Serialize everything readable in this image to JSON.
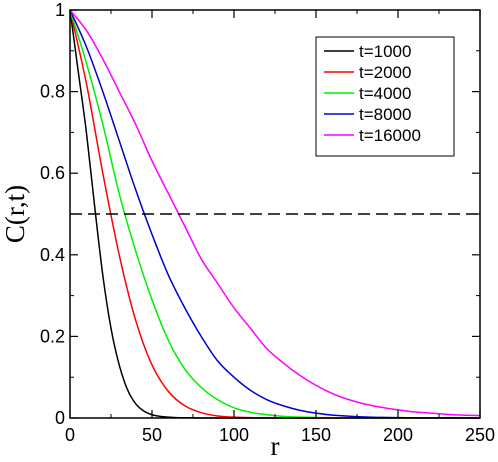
{
  "chart_data": {
    "type": "line",
    "xlabel": "r",
    "ylabel": "C(r,t)",
    "xlim": [
      0,
      250
    ],
    "ylim": [
      0,
      1
    ],
    "x_ticks": [
      0,
      50,
      100,
      150,
      200,
      250
    ],
    "y_ticks": [
      0,
      0.2,
      0.4,
      0.6,
      0.8,
      1
    ],
    "x_tick_labels": [
      "0",
      "50",
      "100",
      "150",
      "200",
      "250"
    ],
    "y_tick_labels": [
      "0",
      "0.2",
      "0.4",
      "0.6",
      "0.8",
      "1"
    ],
    "grid": false,
    "legend_position": "top-right",
    "reference_line": {
      "y": 0.5,
      "style": "dashed",
      "color": "#000000"
    },
    "series": [
      {
        "name": "t=1000",
        "color": "#000000",
        "x": [
          0,
          5,
          10,
          15,
          20,
          25,
          30,
          35,
          40,
          45,
          50,
          55,
          60,
          65,
          70,
          80,
          90,
          100,
          250
        ],
        "y": [
          1.0,
          0.85,
          0.7,
          0.52,
          0.35,
          0.22,
          0.13,
          0.07,
          0.035,
          0.017,
          0.008,
          0.004,
          0.002,
          0.001,
          0.0005,
          0.0001,
          0.0,
          0.0,
          0.0
        ]
      },
      {
        "name": "t=2000",
        "color": "#ff0000",
        "x": [
          0,
          10,
          20,
          30,
          40,
          50,
          60,
          70,
          80,
          90,
          100,
          110,
          120,
          140,
          250
        ],
        "y": [
          1.0,
          0.82,
          0.6,
          0.4,
          0.24,
          0.13,
          0.065,
          0.03,
          0.013,
          0.005,
          0.002,
          0.0008,
          0.0003,
          0.0,
          0.0
        ]
      },
      {
        "name": "t=4000",
        "color": "#00ee00",
        "x": [
          0,
          10,
          20,
          30,
          40,
          50,
          60,
          70,
          80,
          90,
          100,
          110,
          120,
          130,
          140,
          160,
          180,
          250
        ],
        "y": [
          1.0,
          0.87,
          0.72,
          0.55,
          0.41,
          0.29,
          0.19,
          0.12,
          0.075,
          0.045,
          0.025,
          0.014,
          0.008,
          0.004,
          0.002,
          0.0005,
          0.0001,
          0.0
        ]
      },
      {
        "name": "t=8000",
        "color": "#0000cc",
        "x": [
          0,
          10,
          20,
          30,
          40,
          50,
          60,
          70,
          80,
          90,
          100,
          110,
          120,
          130,
          140,
          150,
          160,
          180,
          200,
          220,
          250
        ],
        "y": [
          1.0,
          0.91,
          0.8,
          0.68,
          0.56,
          0.45,
          0.35,
          0.27,
          0.2,
          0.14,
          0.1,
          0.068,
          0.045,
          0.03,
          0.019,
          0.012,
          0.007,
          0.0025,
          0.0008,
          0.0002,
          0.0
        ]
      },
      {
        "name": "t=16000",
        "color": "#ff00ff",
        "x": [
          0,
          10,
          20,
          30,
          40,
          50,
          60,
          70,
          80,
          90,
          100,
          110,
          120,
          130,
          140,
          150,
          160,
          170,
          180,
          190,
          200,
          210,
          220,
          230,
          240,
          250
        ],
        "y": [
          1.0,
          0.95,
          0.88,
          0.8,
          0.72,
          0.63,
          0.55,
          0.47,
          0.39,
          0.33,
          0.27,
          0.22,
          0.17,
          0.135,
          0.105,
          0.08,
          0.06,
          0.045,
          0.034,
          0.026,
          0.02,
          0.015,
          0.012,
          0.009,
          0.007,
          0.006
        ]
      }
    ]
  }
}
